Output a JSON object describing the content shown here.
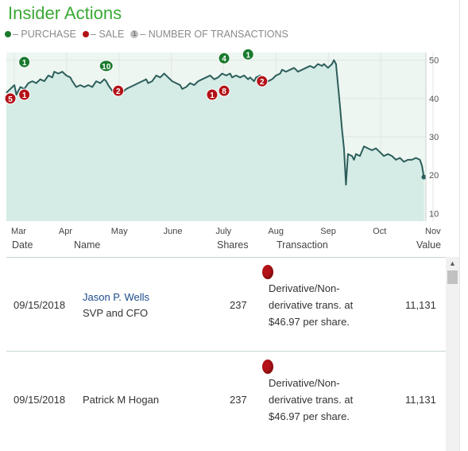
{
  "header": {
    "title": "Insider Actions"
  },
  "legend": {
    "purchase": "– PURCHASE",
    "sale": "– SALE",
    "transactions_badge": "1",
    "transactions": "– NUMBER OF TRANSACTIONS"
  },
  "colors": {
    "accent_green": "#3aa935",
    "purchase_marker": "#1a7a2e",
    "sale_marker": "#b31217",
    "line": "#2c5e5a",
    "area_fill": "#d5ebe6",
    "plot_bg": "#eef6f1"
  },
  "chart_data": {
    "type": "area",
    "x_ticks": [
      "Mar",
      "Apr",
      "May",
      "June",
      "July",
      "Aug",
      "Sep",
      "Oct",
      "Nov"
    ],
    "y_ticks": [
      10,
      20,
      30,
      40,
      50
    ],
    "ylim": [
      8,
      52
    ],
    "grid": true,
    "series": [
      {
        "points": [
          [
            0,
            41.5
          ],
          [
            2,
            42.5
          ],
          [
            4,
            43.5
          ],
          [
            5,
            41
          ],
          [
            7,
            43
          ],
          [
            9,
            42.5
          ],
          [
            11,
            44
          ],
          [
            13,
            44.5
          ],
          [
            15,
            44
          ],
          [
            17,
            45
          ],
          [
            19,
            44.5
          ],
          [
            21,
            46
          ],
          [
            23,
            45.5
          ],
          [
            24,
            47
          ],
          [
            26,
            46.5
          ],
          [
            28,
            47
          ],
          [
            30,
            46
          ],
          [
            32,
            45.5
          ],
          [
            33,
            44.5
          ],
          [
            35,
            43
          ],
          [
            37,
            43.5
          ],
          [
            39,
            43
          ],
          [
            41,
            43.5
          ],
          [
            43,
            43
          ],
          [
            45,
            44.5
          ],
          [
            47,
            44
          ],
          [
            49,
            45
          ],
          [
            50,
            44.5
          ],
          [
            51,
            43.5
          ],
          [
            53,
            42
          ],
          [
            55,
            42.5
          ],
          [
            57,
            41.5
          ],
          [
            59,
            42
          ],
          [
            60,
            42.5
          ],
          [
            62,
            43
          ],
          [
            64,
            43.5
          ],
          [
            66,
            44
          ],
          [
            68,
            44.5
          ],
          [
            70,
            45
          ],
          [
            71,
            44
          ],
          [
            73,
            44.5
          ],
          [
            75,
            46
          ],
          [
            77,
            45.5
          ],
          [
            79,
            46.5
          ],
          [
            81,
            45.5
          ],
          [
            83,
            44.5
          ],
          [
            85,
            44
          ],
          [
            87,
            43.5
          ],
          [
            88,
            42.5
          ],
          [
            90,
            43
          ],
          [
            92,
            44
          ],
          [
            94,
            43.5
          ],
          [
            96,
            44.5
          ],
          [
            98,
            45
          ],
          [
            100,
            45.5
          ],
          [
            102,
            46
          ],
          [
            104,
            45
          ],
          [
            106,
            45.5
          ],
          [
            108,
            46.5
          ],
          [
            110,
            46
          ],
          [
            112,
            46.5
          ],
          [
            113,
            45.5
          ],
          [
            115,
            46
          ],
          [
            117,
            45.5
          ],
          [
            119,
            46
          ],
          [
            121,
            45
          ],
          [
            122,
            45.5
          ],
          [
            124,
            44.5
          ],
          [
            125,
            45.5
          ],
          [
            127,
            46
          ],
          [
            129,
            45
          ],
          [
            131,
            44.5
          ],
          [
            133,
            45
          ],
          [
            135,
            46
          ],
          [
            137,
            46.5
          ],
          [
            138,
            47.5
          ],
          [
            140,
            47
          ],
          [
            142,
            47.5
          ],
          [
            144,
            48
          ],
          [
            146,
            47
          ],
          [
            148,
            47.5
          ],
          [
            150,
            48
          ],
          [
            152,
            48.5
          ],
          [
            154,
            48
          ],
          [
            156,
            49
          ],
          [
            158,
            48.5
          ],
          [
            159,
            49
          ],
          [
            161,
            48
          ],
          [
            163,
            49
          ],
          [
            164,
            50
          ],
          [
            165,
            49
          ],
          [
            166,
            43.5
          ],
          [
            167,
            38
          ],
          [
            168,
            32
          ],
          [
            169,
            27
          ],
          [
            170,
            17.5
          ],
          [
            171,
            25.5
          ],
          [
            173,
            25
          ],
          [
            174,
            24
          ],
          [
            175,
            25.5
          ],
          [
            177,
            25
          ],
          [
            179,
            27.5
          ],
          [
            181,
            27
          ],
          [
            183,
            26.5
          ],
          [
            185,
            27
          ],
          [
            187,
            26
          ],
          [
            189,
            25
          ],
          [
            191,
            25.5
          ],
          [
            193,
            25
          ],
          [
            195,
            24
          ],
          [
            197,
            24.5
          ],
          [
            199,
            23.5
          ],
          [
            201,
            24
          ],
          [
            203,
            24
          ],
          [
            205,
            24.5
          ],
          [
            207,
            24
          ],
          [
            208,
            22.5
          ],
          [
            209,
            19.5
          ]
        ]
      }
    ],
    "purchase_markers": [
      {
        "day": 9,
        "price": 49.5,
        "count": "1"
      },
      {
        "day": 50,
        "price": 48.5,
        "count": "10"
      },
      {
        "day": 109,
        "price": 50.5,
        "count": "4"
      },
      {
        "day": 121,
        "price": 51.5,
        "count": "1"
      }
    ],
    "sale_markers": [
      {
        "day": 2,
        "price": 40,
        "count": "5"
      },
      {
        "day": 9,
        "price": 41,
        "count": "1"
      },
      {
        "day": 56,
        "price": 42,
        "count": "2"
      },
      {
        "day": 103,
        "price": 41,
        "count": "1"
      },
      {
        "day": 109,
        "price": 42,
        "count": "8"
      },
      {
        "day": 128,
        "price": 44.5,
        "count": "2"
      }
    ]
  },
  "table": {
    "columns": {
      "date": "Date",
      "name": "Name",
      "shares": "Shares",
      "transaction": "Transaction",
      "value": "Value"
    },
    "rows": [
      {
        "date": "09/15/2018",
        "name": "Jason P. Wells",
        "title": "SVP and CFO",
        "shares": "237",
        "transaction": "Derivative/Non-derivative trans. at $46.97 per share.",
        "value": "11,131"
      },
      {
        "date": "09/15/2018",
        "name": "Patrick M Hogan",
        "title": "",
        "shares": "237",
        "transaction": "Derivative/Non-derivative trans. at $46.97 per share.",
        "value": "11,131"
      }
    ]
  }
}
